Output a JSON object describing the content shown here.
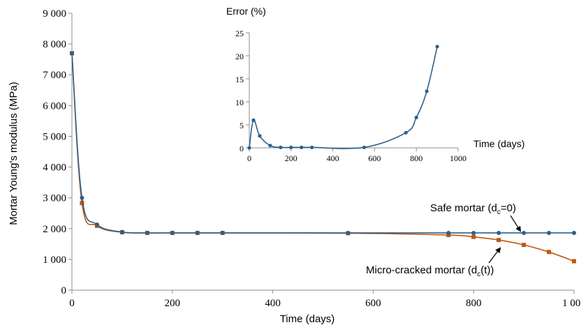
{
  "chart_data": [
    {
      "type": "line",
      "xlabel": "Time (days)",
      "ylabel": "Mortar Young's modulus (MPa)",
      "xlim": [
        0,
        1000
      ],
      "ylim": [
        0,
        9000
      ],
      "xticks": [
        0,
        200,
        400,
        600,
        800,
        1000
      ],
      "xtick_labels": [
        "0",
        "200",
        "400",
        "600",
        "800",
        "1 000"
      ],
      "yticks": [
        0,
        1000,
        2000,
        3000,
        4000,
        5000,
        6000,
        7000,
        8000,
        9000
      ],
      "ytick_labels": [
        "0",
        "1 000",
        "2 000",
        "3 000",
        "4 000",
        "5 000",
        "6 000",
        "7 000",
        "8 000",
        "9 000"
      ],
      "grid": false,
      "series": [
        {
          "name": "Safe mortar (dc=0)",
          "label_main": "Safe mortar (d",
          "label_sub": "c",
          "label_tail": "=0)",
          "color": "#2e5f8a",
          "marker": "circle",
          "x": [
            0,
            20,
            50,
            100,
            150,
            200,
            250,
            300,
            550,
            750,
            800,
            850,
            900,
            950,
            1000
          ],
          "y": [
            7700,
            3000,
            2130,
            1890,
            1860,
            1860,
            1860,
            1860,
            1860,
            1860,
            1860,
            1860,
            1860,
            1860,
            1860
          ]
        },
        {
          "name": "Micro-cracked mortar (dc(t))",
          "label_main": "Micro-cracked mortar (d",
          "label_sub": "c",
          "label_tail": "(t))",
          "color": "#c0570f",
          "marker": "square",
          "x": [
            0,
            20,
            50,
            100,
            150,
            200,
            250,
            300,
            550,
            750,
            800,
            850,
            900,
            950,
            1000
          ],
          "y": [
            7700,
            2830,
            2090,
            1880,
            1860,
            1860,
            1860,
            1860,
            1850,
            1790,
            1730,
            1630,
            1470,
            1240,
            940
          ]
        }
      ]
    },
    {
      "type": "line",
      "title": "Error (%)",
      "xlabel": "Time (days)",
      "xlim": [
        0,
        1000
      ],
      "ylim": [
        0,
        25
      ],
      "xticks": [
        0,
        200,
        400,
        600,
        800,
        1000
      ],
      "xtick_labels": [
        "0",
        "200",
        "400",
        "600",
        "800",
        "1000"
      ],
      "yticks": [
        0,
        5,
        10,
        15,
        20,
        25
      ],
      "ytick_labels": [
        "0",
        "5",
        "10",
        "15",
        "20",
        "25"
      ],
      "grid": false,
      "series": [
        {
          "color": "#2e5f8a",
          "marker": "circle",
          "x": [
            0,
            20,
            50,
            100,
            150,
            200,
            250,
            300,
            550,
            750,
            800,
            850,
            900
          ],
          "y": [
            0,
            6,
            2.6,
            0.5,
            0.1,
            0.1,
            0.1,
            0.1,
            0.1,
            3.3,
            6.6,
            12.3,
            22
          ]
        }
      ]
    }
  ]
}
